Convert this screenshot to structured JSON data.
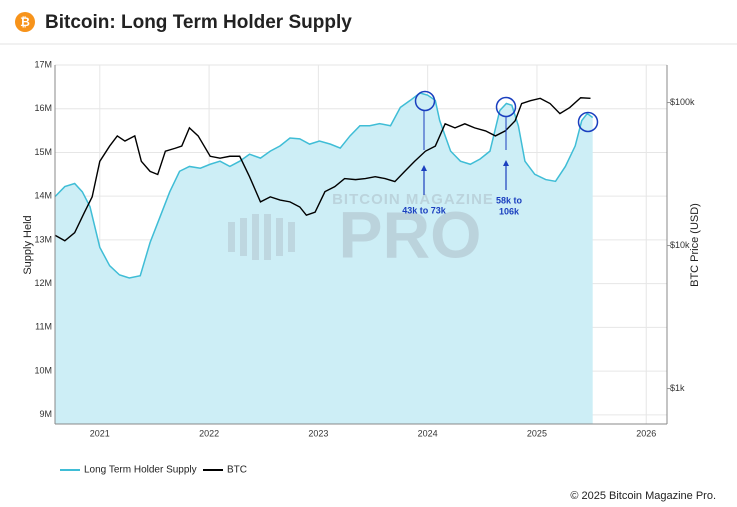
{
  "chart_data": {
    "type": "area-line",
    "title": "Bitcoin: Long Term Holder Supply",
    "ylabel": "Supply Held",
    "y2label": "BTC Price (USD)",
    "watermark": [
      "BITCOIN MAGAZINE",
      "PRO"
    ],
    "footer": "© 2025 Bitcoin Magazine Pro.",
    "xlim": [
      2020.59,
      2026.19
    ],
    "xticks": [
      2021,
      2022,
      2023,
      2024,
      2025,
      2026
    ],
    "ylim": [
      8790000,
      17000000
    ],
    "yticks": [
      {
        "value": 9000000,
        "label": "9M"
      },
      {
        "value": 10000000,
        "label": "10M"
      },
      {
        "value": 11000000,
        "label": "11M"
      },
      {
        "value": 12000000,
        "label": "12M"
      },
      {
        "value": 13000000,
        "label": "13M"
      },
      {
        "value": 14000000,
        "label": "14M"
      },
      {
        "value": 15000000,
        "label": "15M"
      },
      {
        "value": 16000000,
        "label": "16M"
      },
      {
        "value": 17000000,
        "label": "17M"
      }
    ],
    "y2lim": [
      565,
      183000
    ],
    "y2scale": "log",
    "y2ticks": [
      {
        "value": 1000,
        "label": "$1k"
      },
      {
        "value": 10000,
        "label": "$10k"
      },
      {
        "value": 100000,
        "label": "$100k"
      }
    ],
    "grid": true,
    "legend": "bottom-left",
    "series": [
      {
        "name": "Long Term Holder Supply",
        "color": "#3fbdd6",
        "fill": "#cdeef6",
        "x": [
          2020.59,
          2020.68,
          2020.77,
          2020.84,
          2020.91,
          2021.0,
          2021.09,
          2021.18,
          2021.27,
          2021.37,
          2021.46,
          2021.55,
          2021.64,
          2021.73,
          2021.82,
          2021.92,
          2022.01,
          2022.1,
          2022.19,
          2022.28,
          2022.37,
          2022.47,
          2022.56,
          2022.65,
          2022.74,
          2022.83,
          2022.92,
          2023.01,
          2023.11,
          2023.2,
          2023.29,
          2023.38,
          2023.47,
          2023.56,
          2023.66,
          2023.75,
          2023.84,
          2023.93,
          2024.0,
          2024.07,
          2024.11,
          2024.21,
          2024.3,
          2024.39,
          2024.48,
          2024.57,
          2024.66,
          2024.72,
          2024.77,
          2024.83,
          2024.89,
          2024.98,
          2025.08,
          2025.17,
          2025.26,
          2025.35,
          2025.41,
          2025.46,
          2025.51
        ],
        "values": [
          13990000,
          14220000,
          14290000,
          14100000,
          13760000,
          12830000,
          12410000,
          12200000,
          12130000,
          12180000,
          12940000,
          13520000,
          14100000,
          14570000,
          14680000,
          14640000,
          14730000,
          14800000,
          14680000,
          14800000,
          14960000,
          14870000,
          15030000,
          15150000,
          15330000,
          15310000,
          15190000,
          15260000,
          15190000,
          15100000,
          15380000,
          15610000,
          15610000,
          15660000,
          15610000,
          16030000,
          16190000,
          16360000,
          16310000,
          16190000,
          15730000,
          15030000,
          14800000,
          14730000,
          14850000,
          15030000,
          15960000,
          16120000,
          16080000,
          15610000,
          14800000,
          14500000,
          14380000,
          14340000,
          14680000,
          15150000,
          15730000,
          15890000,
          15800000
        ]
      },
      {
        "name": "BTC",
        "color": "#000000",
        "axis": "y2",
        "x": [
          2020.59,
          2020.68,
          2020.77,
          2020.86,
          2020.93,
          2021.0,
          2021.09,
          2021.16,
          2021.23,
          2021.32,
          2021.38,
          2021.46,
          2021.53,
          2021.6,
          2021.69,
          2021.75,
          2021.82,
          2021.9,
          2022.01,
          2022.1,
          2022.19,
          2022.28,
          2022.37,
          2022.47,
          2022.56,
          2022.65,
          2022.74,
          2022.83,
          2022.89,
          2022.97,
          2023.06,
          2023.15,
          2023.24,
          2023.34,
          2023.43,
          2023.52,
          2023.61,
          2023.7,
          2023.79,
          2023.88,
          2023.98,
          2024.07,
          2024.16,
          2024.25,
          2024.34,
          2024.43,
          2024.53,
          2024.62,
          2024.71,
          2024.8,
          2024.86,
          2024.94,
          2025.03,
          2025.12,
          2025.21,
          2025.3,
          2025.4,
          2025.49
        ],
        "values": [
          11800,
          10800,
          12300,
          17100,
          21900,
          38800,
          49600,
          58400,
          53800,
          58400,
          38800,
          33000,
          31400,
          45700,
          47900,
          49600,
          66500,
          58400,
          42100,
          40800,
          42100,
          42100,
          30300,
          20200,
          21900,
          20800,
          20200,
          18600,
          16300,
          17100,
          23800,
          25800,
          29400,
          28900,
          29400,
          30300,
          29400,
          28000,
          33000,
          38800,
          45700,
          49600,
          71000,
          66500,
          71000,
          66500,
          63300,
          58400,
          63300,
          74500,
          98400,
          103000,
          107000,
          98400,
          83600,
          92200,
          108000,
          107000
        ]
      }
    ],
    "annotations": [
      {
        "lines": [
          "43k to 73k"
        ]
      },
      {
        "lines": [
          "58k to",
          "106k"
        ]
      }
    ]
  }
}
